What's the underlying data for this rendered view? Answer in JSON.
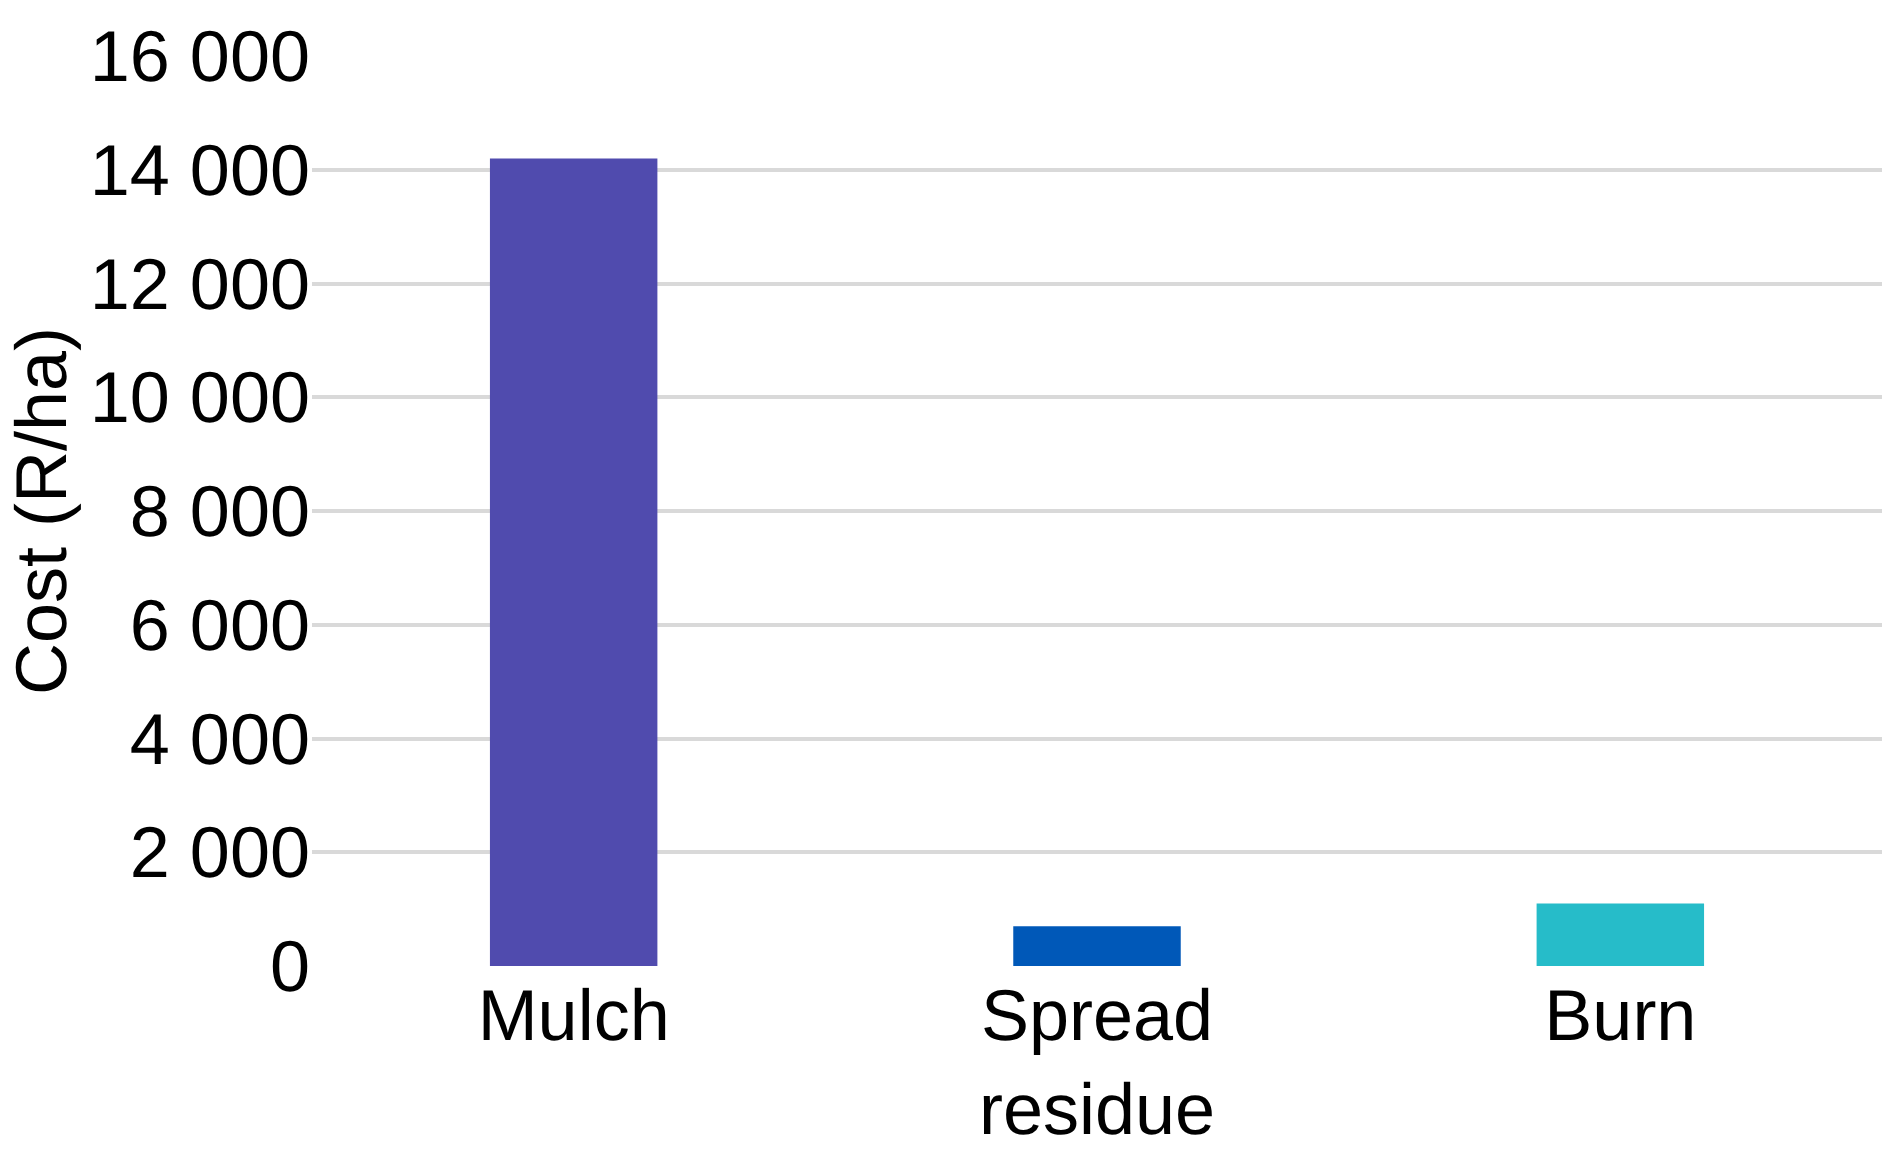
{
  "chart_data": {
    "type": "bar",
    "ylabel": "Cost (R/ha)",
    "categories": [
      "Mulch",
      "Spread residue",
      "Burn"
    ],
    "values": [
      14200,
      700,
      1100
    ],
    "colors": [
      "#504bae",
      "#0058b8",
      "#26bcc9"
    ],
    "ylim": [
      0,
      16000
    ],
    "yticks": [
      0,
      {
        "value": 2000,
        "label": "2 000"
      },
      {
        "value": 4000,
        "label": "4 000"
      },
      {
        "value": 6000,
        "label": "6 000"
      },
      {
        "value": 8000,
        "label": "8 000"
      },
      {
        "value": 10000,
        "label": "10 000"
      },
      {
        "value": 12000,
        "label": "12 000"
      },
      {
        "value": 14000,
        "label": "14 000"
      },
      {
        "value": 16000,
        "label": "16 000"
      }
    ],
    "grid": "y",
    "legend": false
  }
}
